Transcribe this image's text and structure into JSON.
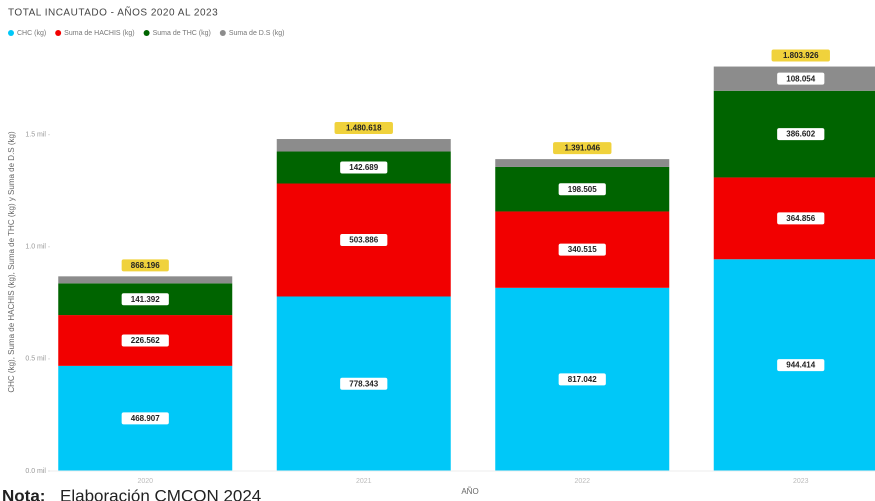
{
  "chart_data": {
    "type": "stacked_bar",
    "title": "TOTAL INCAUTADO - AÑOS 2020 AL 2023",
    "x_label": "AÑO",
    "y_label": "CHC (kg), Suma de HACHIS (kg), Suma de THC (kg) y Suma de D.S (kg)",
    "categories": [
      "2020",
      "2021",
      "2022",
      "2023"
    ],
    "series": [
      {
        "name": "CHC (kg)",
        "color": "#00c8f8",
        "values": [
          468907,
          778343,
          817042,
          944414
        ],
        "value_labels": [
          "468.907",
          "778.343",
          "817.042",
          "944.414"
        ]
      },
      {
        "name": "Suma de HACHIS (kg)",
        "color": "#f20000",
        "values": [
          226562,
          503886,
          340515,
          364856
        ],
        "value_labels": [
          "226.562",
          "503.886",
          "340.515",
          "364.856"
        ]
      },
      {
        "name": "Suma de THC (kg)",
        "color": "#006400",
        "values": [
          141392,
          142689,
          198505,
          386602
        ],
        "value_labels": [
          "141.392",
          "142.689",
          "198.505",
          "386.602"
        ]
      },
      {
        "name": "Suma de D.S (kg)",
        "color": "#8c8c8c",
        "values": [
          31335,
          55700,
          34984,
          108054
        ],
        "value_labels": [
          null,
          null,
          null,
          "108.054"
        ]
      }
    ],
    "totals": {
      "values": [
        868196,
        1480618,
        1391046,
        1803926
      ],
      "value_labels": [
        "868.196",
        "1.480.618",
        "1.391.046",
        "1.803.926"
      ],
      "color": "#f0d23c"
    },
    "ylim": [
      0,
      1900000
    ],
    "yticks": [
      {
        "value": 0,
        "label": "0.0 mil"
      },
      {
        "value": 500000,
        "label": "0.5 mil"
      },
      {
        "value": 1000000,
        "label": "1.0 mil"
      },
      {
        "value": 1500000,
        "label": "1.5 mil"
      }
    ],
    "grid": false
  },
  "footer": {
    "label": "Nota:",
    "text": "Elaboración CMCON 2024"
  }
}
